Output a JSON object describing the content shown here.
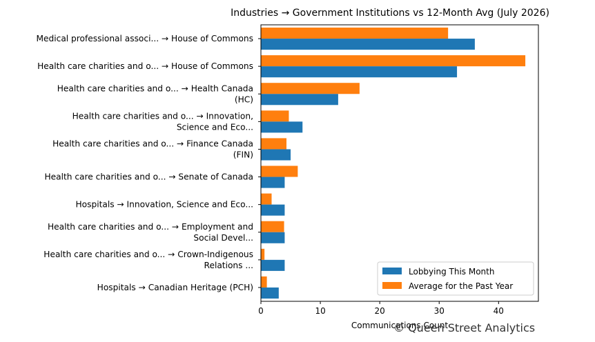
{
  "chart_data": {
    "type": "bar",
    "orientation": "horizontal",
    "title": "Industries → Government Institutions vs 12-Month Avg (July 2026)",
    "xlabel": "Communications Count",
    "ylabel": "",
    "xlim": [
      0,
      46.7
    ],
    "xticks": [
      0,
      10,
      20,
      30,
      40
    ],
    "grid": false,
    "legend_position": "lower-right",
    "categories": [
      [
        "Medical professional associ... → House of Commons"
      ],
      [
        "Health care charities and o... → House of Commons"
      ],
      [
        "Health care charities and o... → Health Canada",
        "(HC)"
      ],
      [
        "Health care charities and o... → Innovation,",
        "Science and Eco..."
      ],
      [
        "Health care charities and o... → Finance Canada",
        "(FIN)"
      ],
      [
        "Health care charities and o... → Senate of Canada"
      ],
      [
        "Hospitals → Innovation, Science and Eco..."
      ],
      [
        "Health care charities and o... → Employment and",
        "Social Devel..."
      ],
      [
        "Health care charities and o... → Crown-Indigenous",
        "Relations ..."
      ],
      [
        "Hospitals → Canadian Heritage (PCH)"
      ]
    ],
    "series": [
      {
        "name": "Lobbying This Month",
        "color": "#1f77b4",
        "values": [
          36,
          33,
          13,
          7,
          5,
          4,
          4,
          4,
          4,
          3
        ]
      },
      {
        "name": "Average for the Past Year",
        "color": "#ff7f0e",
        "values": [
          31.5,
          44.5,
          16.6,
          4.7,
          4.3,
          6.2,
          1.8,
          3.9,
          0.6,
          1.0
        ]
      }
    ]
  },
  "watermark": "© Queen Street Analytics"
}
